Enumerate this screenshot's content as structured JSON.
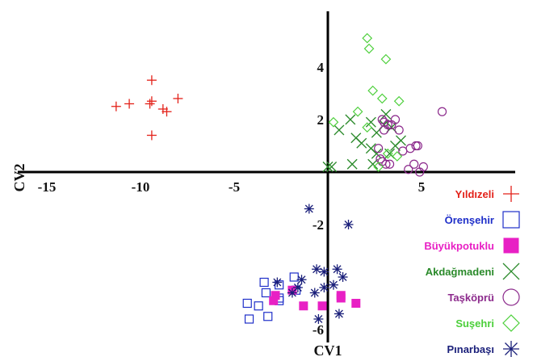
{
  "chart_data": {
    "type": "scatter",
    "xlabel": "CV1",
    "ylabel": "CV2",
    "xlim": [
      -16.5,
      10.5
    ],
    "ylim": [
      -6.4,
      6.3
    ],
    "x_ticks": [
      -15,
      -10,
      -5,
      5
    ],
    "x_tick_labels": [
      "-15",
      "-10",
      "-5",
      "5"
    ],
    "y_ticks": [
      4,
      2,
      -2,
      -6
    ],
    "y_tick_labels": [
      "4",
      "2",
      "-2",
      "-6"
    ],
    "grid": false,
    "legend_position": "right",
    "series": [
      {
        "name": "Yıldızeli",
        "marker": "plus",
        "color": "#e32119",
        "points": [
          [
            -11.3,
            2.5
          ],
          [
            -10.6,
            2.6
          ],
          [
            -9.4,
            3.5
          ],
          [
            -9.5,
            2.6
          ],
          [
            -9.4,
            2.7
          ],
          [
            -8.8,
            2.4
          ],
          [
            -8.6,
            2.3
          ],
          [
            -8.0,
            2.8
          ],
          [
            -9.4,
            1.4
          ]
        ]
      },
      {
        "name": "Örenşehir",
        "marker": "square-open",
        "color": "#1f2fc9",
        "points": [
          [
            -3.4,
            -4.2
          ],
          [
            -2.6,
            -4.3
          ],
          [
            -1.8,
            -4.0
          ],
          [
            -3.3,
            -4.6
          ],
          [
            -2.6,
            -4.8
          ],
          [
            -1.7,
            -4.5
          ],
          [
            -4.3,
            -5.0
          ],
          [
            -3.7,
            -5.1
          ],
          [
            -2.6,
            -4.9
          ],
          [
            -3.2,
            -5.5
          ],
          [
            -4.2,
            -5.6
          ]
        ]
      },
      {
        "name": "Büyükpotuklu",
        "marker": "square-filled",
        "color": "#e820c4",
        "points": [
          [
            -1.3,
            -5.1
          ],
          [
            -0.3,
            -5.1
          ],
          [
            1.5,
            -5.0
          ],
          [
            0.7,
            -4.8
          ],
          [
            0.7,
            -4.7
          ],
          [
            -2.8,
            -4.7
          ],
          [
            -1.9,
            -4.5
          ],
          [
            -2.9,
            -4.9
          ]
        ]
      },
      {
        "name": "Akdağmadeni",
        "marker": "x",
        "color": "#2a8a2a",
        "points": [
          [
            0.0,
            0.2
          ],
          [
            0.6,
            1.6
          ],
          [
            1.2,
            2.0
          ],
          [
            1.5,
            1.3
          ],
          [
            1.8,
            1.1
          ],
          [
            2.3,
            0.9
          ],
          [
            2.6,
            1.5
          ],
          [
            2.6,
            0.7
          ],
          [
            3.0,
            1.8
          ],
          [
            3.3,
            0.7
          ],
          [
            2.4,
            0.3
          ],
          [
            3.6,
            1.0
          ],
          [
            3.9,
            1.2
          ],
          [
            3.4,
            1.7
          ],
          [
            3.1,
            2.2
          ],
          [
            2.3,
            1.9
          ],
          [
            1.3,
            0.3
          ],
          [
            0.2,
            0.2
          ]
        ]
      },
      {
        "name": "Taşköprü",
        "marker": "circle",
        "color": "#8c2a8c",
        "points": [
          [
            6.1,
            2.3
          ],
          [
            4.7,
            1.0
          ],
          [
            4.8,
            1.0
          ],
          [
            4.4,
            0.9
          ],
          [
            4.0,
            0.8
          ],
          [
            3.8,
            1.6
          ],
          [
            3.6,
            2.0
          ],
          [
            3.4,
            1.8
          ],
          [
            3.2,
            1.8
          ],
          [
            3.0,
            1.6
          ],
          [
            3.0,
            1.9
          ],
          [
            2.9,
            2.0
          ],
          [
            2.7,
            0.9
          ],
          [
            2.8,
            0.5
          ],
          [
            2.9,
            0.4
          ],
          [
            3.1,
            0.3
          ],
          [
            3.3,
            0.3
          ],
          [
            4.3,
            0.1
          ],
          [
            4.6,
            0.3
          ],
          [
            5.1,
            0.2
          ],
          [
            4.9,
            0.0
          ]
        ]
      },
      {
        "name": "Suşehri",
        "marker": "diamond",
        "color": "#4ccf3a",
        "points": [
          [
            2.1,
            5.1
          ],
          [
            2.2,
            4.7
          ],
          [
            3.1,
            4.3
          ],
          [
            2.4,
            3.1
          ],
          [
            2.9,
            2.8
          ],
          [
            3.8,
            2.7
          ],
          [
            2.1,
            1.7
          ],
          [
            0.3,
            1.9
          ],
          [
            1.6,
            2.3
          ],
          [
            3.2,
            0.7
          ],
          [
            3.7,
            0.6
          ],
          [
            2.7,
            0.2
          ]
        ]
      },
      {
        "name": "Pınarbaşı",
        "marker": "asterisk",
        "color": "#1a1f7a",
        "points": [
          [
            -1.0,
            -1.4
          ],
          [
            1.1,
            -2.0
          ],
          [
            -0.6,
            -3.7
          ],
          [
            -0.2,
            -3.8
          ],
          [
            -1.4,
            -4.1
          ],
          [
            0.5,
            -3.7
          ],
          [
            0.8,
            -4.0
          ],
          [
            -2.7,
            -4.2
          ],
          [
            -1.6,
            -4.4
          ],
          [
            -0.7,
            -4.6
          ],
          [
            -0.2,
            -4.4
          ],
          [
            0.3,
            -4.3
          ],
          [
            -1.9,
            -4.6
          ],
          [
            0.6,
            -5.4
          ],
          [
            -0.5,
            -5.6
          ]
        ]
      }
    ]
  }
}
